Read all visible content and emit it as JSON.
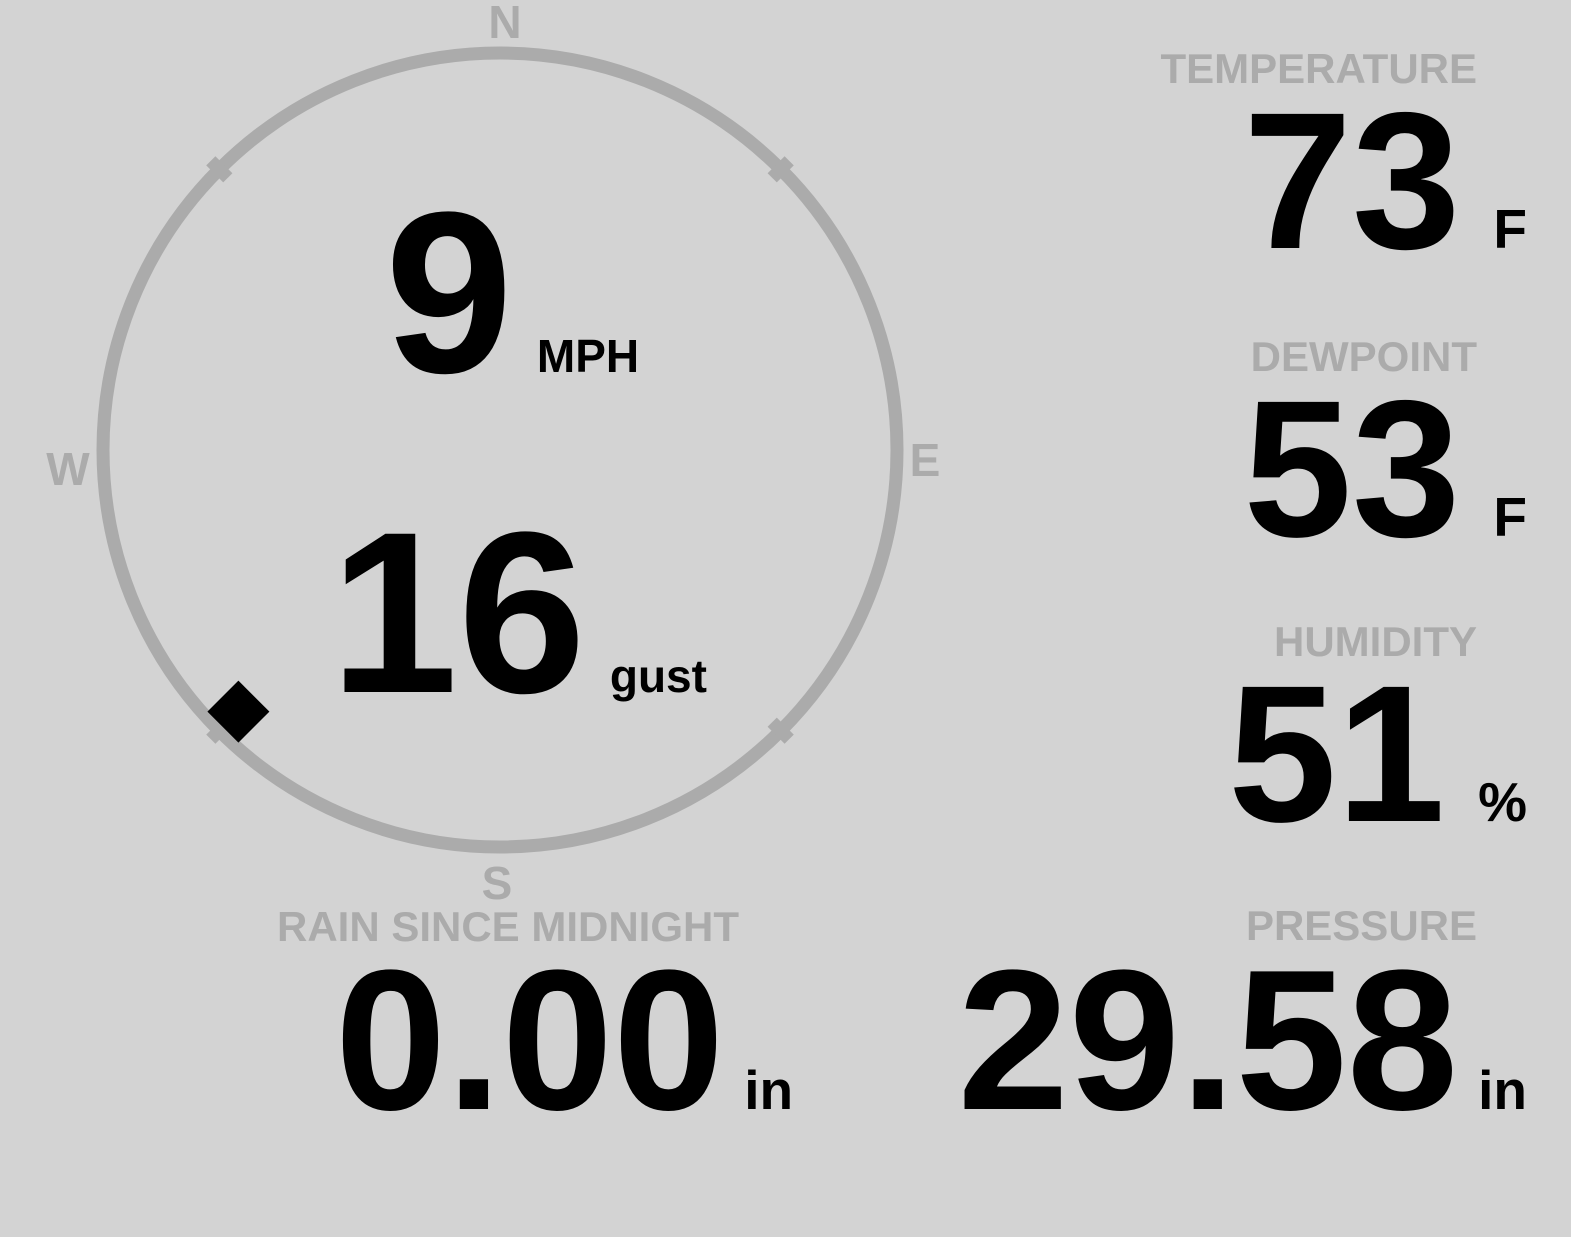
{
  "colors": {
    "background": "#d3d3d3",
    "muted_gray": "#ababab",
    "value_black": "#000000"
  },
  "compass": {
    "cardinals": {
      "north": "N",
      "east": "E",
      "south": "S",
      "west": "W"
    },
    "wind": {
      "speed": "9",
      "speed_unit": "MPH",
      "gust": "16",
      "gust_unit": "gust"
    },
    "direction": {
      "degrees": 225,
      "compass_point": "SW",
      "marker": "diamond"
    }
  },
  "metrics": {
    "temperature": {
      "label": "TEMPERATURE",
      "value": "73",
      "unit": "F"
    },
    "dewpoint": {
      "label": "DEWPOINT",
      "value": "53",
      "unit": "F"
    },
    "humidity": {
      "label": "HUMIDITY",
      "value": "51",
      "unit": "%"
    },
    "pressure": {
      "label": "PRESSURE",
      "value": "29.58",
      "unit": "in"
    },
    "rain": {
      "label": "RAIN SINCE MIDNIGHT",
      "value": "0.00",
      "unit": "in"
    }
  }
}
